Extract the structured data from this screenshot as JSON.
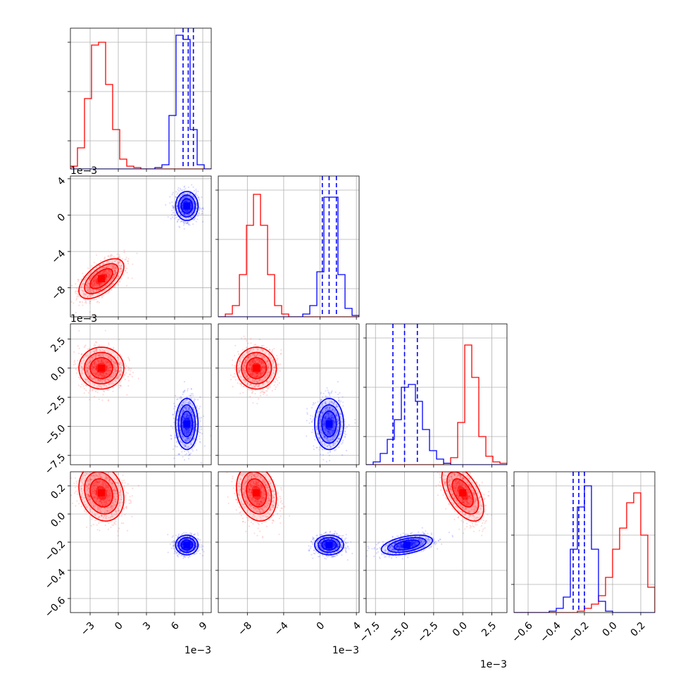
{
  "chart_data": {
    "type": "corner",
    "grid": true,
    "dimensions": [
      {
        "offset_label": "1e−3",
        "range": [
          -5.1,
          9.9
        ],
        "ticks": [
          -3,
          0,
          3,
          6,
          9
        ],
        "tick_labels": [
          "−3",
          "0",
          "3",
          "6",
          "9"
        ],
        "truths_blue": [
          6.9,
          7.45,
          8.0
        ]
      },
      {
        "offset_label": "1e−3",
        "range": [
          -11.2,
          4.3
        ],
        "ticks": [
          -8,
          -4,
          0,
          4
        ],
        "tick_labels": [
          "−8",
          "−4",
          "0",
          "4"
        ],
        "truths_blue": [
          0.25,
          1.0,
          1.8
        ]
      },
      {
        "offset_label": "1e−3",
        "range": [
          -8.3,
          3.8
        ],
        "ticks": [
          -7.5,
          -5.0,
          -2.5,
          0.0,
          2.5
        ],
        "tick_labels": [
          "−7.5",
          "−5.0",
          "−2.5",
          "0.0",
          "2.5"
        ],
        "truths_blue": [
          -6.0,
          -5.0,
          -3.9
        ]
      },
      {
        "offset_label": "",
        "range": [
          -0.7,
          0.3
        ],
        "ticks": [
          -0.6,
          -0.4,
          -0.2,
          0.0,
          0.2
        ],
        "tick_labels": [
          "−0.6",
          "−0.4",
          "−0.2",
          "0.0",
          "0.2"
        ],
        "truths_blue": [
          -0.28,
          -0.24,
          -0.2
        ]
      }
    ],
    "series": [
      {
        "color": "#ff0000",
        "means": [
          -0.0018,
          -0.007,
          0.0,
          0.15
        ],
        "sds": [
          0.0012,
          0.0011,
          0.0009,
          0.1
        ],
        "corr": {
          "0-1": 0.6,
          "0-2": 0.0,
          "0-3": -0.2,
          "1-2": 0.0,
          "1-3": -0.2,
          "2-3": -0.55
        },
        "histograms": [
          [
            0.02,
            0.15,
            0.5,
            0.88,
            0.9,
            0.6,
            0.28,
            0.07,
            0.02,
            0.01,
            0,
            0,
            0,
            0,
            0,
            0,
            0,
            0,
            0,
            0
          ],
          [
            0,
            0.02,
            0.08,
            0.3,
            0.65,
            0.87,
            0.65,
            0.3,
            0.08,
            0.02,
            0,
            0,
            0,
            0,
            0,
            0,
            0,
            0,
            0,
            0
          ],
          [
            0,
            0,
            0,
            0,
            0,
            0,
            0,
            0,
            0,
            0,
            0,
            0.01,
            0.05,
            0.3,
            0.85,
            0.62,
            0.2,
            0.06,
            0.02,
            0.01
          ],
          [
            0,
            0,
            0,
            0,
            0,
            0,
            0,
            0,
            0,
            0.01,
            0.03,
            0.06,
            0.12,
            0.25,
            0.45,
            0.6,
            0.78,
            0.85,
            0.55,
            0.18
          ]
        ]
      },
      {
        "color": "#0000ff",
        "means": [
          0.0073,
          0.001,
          -0.0048,
          -0.22
        ],
        "sds": [
          0.0006,
          0.0008,
          0.0011,
          0.035
        ],
        "corr": {
          "0-1": 0.0,
          "0-2": 0.0,
          "0-3": 0.0,
          "1-2": 0.0,
          "1-3": 0.0,
          "2-3": 0.45
        },
        "histograms": [
          [
            0,
            0,
            0,
            0,
            0,
            0,
            0,
            0,
            0,
            0,
            0,
            0,
            0.01,
            0.03,
            0.38,
            0.95,
            0.92,
            0.28,
            0.03,
            0
          ],
          [
            0,
            0,
            0,
            0,
            0,
            0,
            0,
            0,
            0,
            0,
            0,
            0,
            0.02,
            0.08,
            0.32,
            0.85,
            0.85,
            0.3,
            0.06,
            0.01
          ],
          [
            0,
            0.02,
            0.08,
            0.18,
            0.32,
            0.55,
            0.57,
            0.45,
            0.25,
            0.1,
            0.04,
            0.01,
            0,
            0,
            0,
            0,
            0,
            0,
            0,
            0
          ],
          [
            0,
            0,
            0,
            0,
            0,
            0.01,
            0.03,
            0.11,
            0.45,
            0.75,
            0.9,
            0.45,
            0.08,
            0.01,
            0,
            0,
            0,
            0,
            0,
            0
          ]
        ]
      }
    ]
  }
}
